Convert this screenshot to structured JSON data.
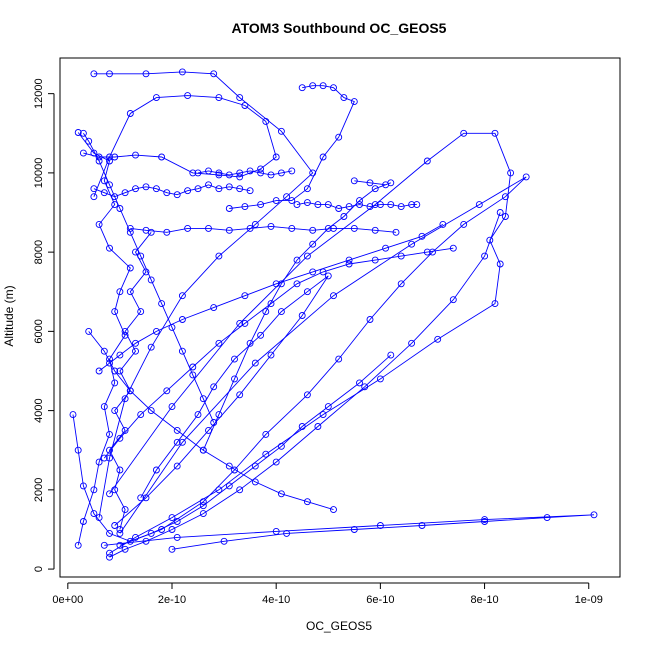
{
  "chart_data": {
    "type": "line",
    "title": "ATOM3 Southbound OC_GEOS5",
    "xlabel": "OC_GEOS5",
    "ylabel": "Altitude (m)",
    "xlim": [
      -1.5e-11,
      1.06e-09
    ],
    "ylim": [
      -200,
      12900
    ],
    "x_ticks": [
      {
        "value": 0,
        "label": "0e+00"
      },
      {
        "value": 2e-10,
        "label": "2e-10"
      },
      {
        "value": 4e-10,
        "label": "4e-10"
      },
      {
        "value": 6e-10,
        "label": "6e-10"
      },
      {
        "value": 8e-10,
        "label": "8e-10"
      },
      {
        "value": 1e-09,
        "label": "1e-09"
      }
    ],
    "y_ticks": [
      {
        "value": 0,
        "label": "0"
      },
      {
        "value": 2000,
        "label": "2000"
      },
      {
        "value": 4000,
        "label": "4000"
      },
      {
        "value": 6000,
        "label": "6000"
      },
      {
        "value": 8000,
        "label": "8000"
      },
      {
        "value": 10000,
        "label": "10000"
      },
      {
        "value": 12000,
        "label": "12000"
      }
    ],
    "grid": false,
    "legend": "none",
    "series_color": "#0000ff",
    "marker": "open-circle",
    "series": [
      {
        "x": [
          2e-11,
          5e-11,
          8e-11,
          7e-11,
          9e-11,
          6e-11,
          8e-11,
          1.2e-10,
          1e-10,
          9e-11,
          1.1e-10,
          8e-11,
          9e-11,
          7e-11,
          8e-11,
          6e-11,
          5e-11,
          3e-11,
          2e-11
        ],
        "y": [
          11020,
          10500,
          10300,
          9800,
          9200,
          8700,
          8100,
          7600,
          7000,
          6500,
          5900,
          5300,
          4700,
          4100,
          3400,
          2700,
          2000,
          1200,
          600
        ]
      },
      {
        "x": [
          5e-11,
          8e-11,
          1.5e-10,
          2.2e-10,
          2.8e-10,
          3.3e-10,
          4.1e-10,
          4.7e-10,
          4.2e-10,
          3.6e-10,
          2.9e-10,
          2.2e-10,
          1.6e-10,
          1.1e-10,
          8e-11,
          6e-11
        ],
        "y": [
          12500,
          12500,
          12500,
          12550,
          12500,
          11900,
          11050,
          10000,
          9400,
          8700,
          7900,
          6900,
          5600,
          4300,
          2800,
          1300
        ]
      },
      {
        "x": [
          1e-10,
          1.8e-10,
          2.6e-10,
          3.2e-10,
          3.8e-10,
          4.6e-10,
          5.2e-10,
          5.8e-10,
          6.4e-10,
          7e-10,
          7.6e-10,
          8.4e-10,
          8.8e-10,
          7.9e-10,
          6.6e-10,
          5.1e-10,
          3.6e-10,
          2.2e-10,
          1e-10
        ],
        "y": [
          600,
          1000,
          1700,
          2500,
          3400,
          4400,
          5300,
          6300,
          7200,
          8000,
          8700,
          9400,
          9900,
          9200,
          8200,
          6900,
          5200,
          3200,
          900
        ]
      },
      {
        "x": [
          8e-11,
          1.3e-10,
          2e-10,
          2.9e-10,
          3.8e-10,
          4.9e-10,
          6e-10,
          7.1e-10,
          8.2e-10,
          8.3e-10,
          8.1e-10,
          8.4e-10,
          8.5e-10,
          8.2e-10,
          7.6e-10,
          6.9e-10,
          5.9e-10,
          4.6e-10,
          3.3e-10,
          2e-10,
          8e-11
        ],
        "y": [
          400,
          800,
          1300,
          2000,
          2900,
          3900,
          4800,
          5800,
          6700,
          7700,
          8300,
          8900,
          10000,
          11000,
          11000,
          10300,
          9200,
          7900,
          6200,
          4100,
          1900
        ]
      },
      {
        "x": [
          2e-10,
          3e-10,
          4.2e-10,
          5.5e-10,
          6.8e-10,
          8e-10,
          9.2e-10,
          1.01e-09,
          8e-10,
          6e-10,
          4e-10,
          2.1e-10,
          7e-11
        ],
        "y": [
          500,
          700,
          900,
          1000,
          1100,
          1200,
          1300,
          1370,
          1250,
          1100,
          950,
          800,
          600
        ]
      },
      {
        "x": [
          3e-11,
          6e-11,
          9e-11,
          1.3e-10,
          1.8e-10,
          2.4e-10,
          2.9e-10,
          3.3e-10,
          3.7e-10,
          4e-10,
          3.8e-10,
          3.4e-10,
          2.9e-10,
          2.3e-10,
          1.7e-10,
          1.2e-10,
          8e-11,
          5e-11
        ],
        "y": [
          10500,
          10400,
          10400,
          10450,
          10400,
          10000,
          9950,
          9900,
          10100,
          10400,
          11300,
          11700,
          11900,
          11950,
          11900,
          11500,
          10400,
          9400
        ]
      },
      {
        "x": [
          4.5e-10,
          4.7e-10,
          4.9e-10,
          5.1e-10,
          5.3e-10,
          5.5e-10,
          5.2e-10,
          4.9e-10,
          4.6e-10,
          4.3e-10,
          4e-10,
          3.7e-10,
          3.4e-10,
          3.1e-10
        ],
        "y": [
          12150,
          12200,
          12200,
          12150,
          11900,
          11800,
          10900,
          10400,
          9600,
          9300,
          9300,
          9200,
          9150,
          9100
        ]
      },
      {
        "x": [
          6.7e-10,
          6.6e-10,
          6.4e-10,
          6.2e-10,
          6e-10,
          5.8e-10,
          5.6e-10,
          5.4e-10,
          5.2e-10,
          5e-10,
          4.8e-10,
          4.6e-10,
          4.4e-10
        ],
        "y": [
          9200,
          9200,
          9150,
          9200,
          9200,
          9150,
          9200,
          9150,
          9100,
          9200,
          9200,
          9250,
          9200
        ]
      },
      {
        "x": [
          1e-11,
          2e-11,
          3e-11,
          5e-11,
          8e-11,
          1.2e-10,
          1.6e-10,
          2.1e-10,
          2.6e-10,
          3.1e-10,
          3.6e-10,
          4.1e-10,
          4.5e-10,
          5e-10,
          5.6e-10,
          6.2e-10
        ],
        "y": [
          3900,
          3000,
          2100,
          1400,
          900,
          700,
          900,
          1200,
          1600,
          2100,
          2600,
          3100,
          3600,
          4100,
          4700,
          5400
        ]
      },
      {
        "x": [
          5.5e-10,
          5.8e-10,
          6.1e-10,
          6.2e-10,
          5.9e-10,
          5.6e-10,
          5.3e-10,
          5e-10,
          4.7e-10,
          4.4e-10,
          4.1e-10,
          3.8e-10,
          3.5e-10,
          3.2e-10,
          2.9e-10,
          2.6e-10
        ],
        "y": [
          9800,
          9750,
          9700,
          9750,
          9600,
          9300,
          8900,
          8600,
          8200,
          7800,
          7200,
          6500,
          5700,
          4800,
          3900,
          3000
        ]
      },
      {
        "x": [
          7e-11,
          1e-10,
          1.4e-10,
          1.9e-10,
          2.4e-10,
          2.9e-10,
          3.4e-10,
          3.9e-10,
          4.4e-10,
          4.9e-10,
          5.4e-10,
          5.9e-10,
          6.4e-10,
          6.9e-10,
          7.4e-10
        ],
        "y": [
          2800,
          3300,
          3900,
          4500,
          5100,
          5700,
          6200,
          6700,
          7200,
          7500,
          7700,
          7800,
          7900,
          8000,
          8100
        ]
      },
      {
        "x": [
          1.2e-10,
          1.5e-10,
          1.9e-10,
          2.3e-10,
          2.7e-10,
          3.1e-10,
          3.5e-10,
          3.9e-10,
          4.3e-10,
          4.7e-10,
          5.1e-10,
          5.5e-10,
          5.9e-10,
          6.3e-10
        ],
        "y": [
          8600,
          8550,
          8500,
          8600,
          8600,
          8550,
          8600,
          8650,
          8600,
          8550,
          8600,
          8600,
          8550,
          8500
        ]
      },
      {
        "x": [
          1e-10,
          1.1e-10,
          9e-11,
          1e-10,
          8e-11,
          1.1e-10,
          9e-11,
          1.2e-10,
          1e-10,
          1.3e-10,
          1.1e-10,
          1.4e-10,
          1.2e-10,
          1.5e-10,
          1.3e-10,
          1.6e-10
        ],
        "y": [
          1000,
          1500,
          2000,
          2500,
          3000,
          3500,
          4000,
          4500,
          5000,
          5500,
          6000,
          6500,
          7000,
          7500,
          8000,
          8500
        ]
      },
      {
        "x": [
          1.4e-10,
          1.7e-10,
          2.1e-10,
          2.5e-10,
          2.8e-10,
          3.2e-10,
          3.7e-10,
          4.1e-10,
          4.6e-10,
          5e-10,
          4.5e-10,
          3.9e-10,
          3.3e-10,
          2.7e-10,
          2.1e-10,
          1.5e-10,
          9e-11
        ],
        "y": [
          1800,
          2500,
          3200,
          3900,
          4600,
          5300,
          5900,
          6500,
          7000,
          7400,
          6400,
          5400,
          4400,
          3500,
          2600,
          1800,
          1100
        ]
      },
      {
        "x": [
          3e-11,
          4e-11,
          6e-11,
          8e-11,
          1e-10,
          1.2e-10,
          1.4e-10,
          1.6e-10,
          1.8e-10,
          2e-10,
          2.2e-10,
          2.4e-10,
          2.6e-10,
          2.8e-10
        ],
        "y": [
          11000,
          10800,
          10300,
          9700,
          9100,
          8500,
          7900,
          7300,
          6700,
          6100,
          5500,
          4900,
          4300,
          3700
        ]
      },
      {
        "x": [
          8e-11,
          1.1e-10,
          1.5e-10,
          2e-10,
          2.6e-10,
          3.3e-10,
          4e-10,
          4.8e-10,
          5.7e-10,
          6.6e-10,
          7.4e-10,
          8e-10,
          8.3e-10
        ],
        "y": [
          300,
          500,
          700,
          1000,
          1400,
          2000,
          2700,
          3600,
          4600,
          5700,
          6800,
          7900,
          9000
        ]
      },
      {
        "x": [
          6e-11,
          8e-11,
          1e-10,
          1.3e-10,
          1.7e-10,
          2.2e-10,
          2.8e-10,
          3.4e-10,
          4e-10,
          4.7e-10,
          5.4e-10,
          6.1e-10,
          6.8e-10,
          7.2e-10
        ],
        "y": [
          5000,
          5200,
          5400,
          5700,
          6000,
          6300,
          6600,
          6900,
          7200,
          7500,
          7800,
          8100,
          8400,
          8700
        ]
      },
      {
        "x": [
          4e-11,
          7e-11,
          9e-11,
          1.2e-10,
          1.6e-10,
          2.1e-10,
          2.6e-10,
          3.1e-10,
          3.6e-10,
          4.1e-10,
          4.6e-10,
          5.1e-10
        ],
        "y": [
          6000,
          5500,
          5000,
          4500,
          4000,
          3500,
          3000,
          2600,
          2200,
          1900,
          1700,
          1500
        ]
      },
      {
        "x": [
          5e-11,
          7e-11,
          9e-11,
          1.1e-10,
          1.3e-10,
          1.5e-10,
          1.7e-10,
          1.9e-10,
          2.1e-10,
          2.3e-10,
          2.5e-10,
          2.7e-10,
          2.9e-10,
          3.1e-10,
          3.3e-10,
          3.5e-10
        ],
        "y": [
          9600,
          9500,
          9400,
          9500,
          9600,
          9650,
          9600,
          9500,
          9450,
          9550,
          9600,
          9700,
          9600,
          9650,
          9600,
          9550
        ]
      },
      {
        "x": [
          2.5e-10,
          2.7e-10,
          2.9e-10,
          3.1e-10,
          3.3e-10,
          3.5e-10,
          3.7e-10,
          3.9e-10,
          4.1e-10,
          4.3e-10
        ],
        "y": [
          10000,
          10050,
          10000,
          9950,
          10000,
          10050,
          10000,
          9950,
          10000,
          10050
        ]
      }
    ]
  }
}
